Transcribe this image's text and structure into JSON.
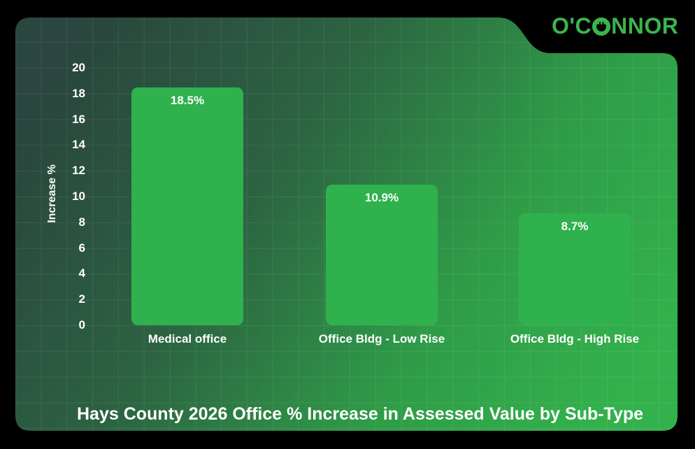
{
  "logo": {
    "prefix": "O'C",
    "suffix": "NNOR",
    "full_name": "O'CONNOR",
    "color": "#3CB44C"
  },
  "colors": {
    "page_background": "#000000",
    "panel_gradient": [
      "#2a463e",
      "#2c6241",
      "#2f9c48",
      "#33b14c"
    ],
    "bar_color": "#2FB14E",
    "grid_line": "rgba(255,255,255,0.08)",
    "text": "#ffffff"
  },
  "chart_data": {
    "type": "bar",
    "categories": [
      "Medical office",
      "Office Bldg - Low Rise",
      "Office Bldg - High Rise"
    ],
    "values": [
      18.5,
      10.9,
      8.7
    ],
    "value_labels": [
      "18.5%",
      "10.9%",
      "8.7%"
    ],
    "title": "Hays County 2026 Office % Increase in Assessed Value by Sub-Type",
    "xlabel": "",
    "ylabel": "Increase %",
    "ylim": [
      0,
      20
    ],
    "ytick_step": 2,
    "yticks": [
      0,
      2,
      4,
      6,
      8,
      10,
      12,
      14,
      16,
      18,
      20
    ],
    "grid": true,
    "legend": "none"
  }
}
